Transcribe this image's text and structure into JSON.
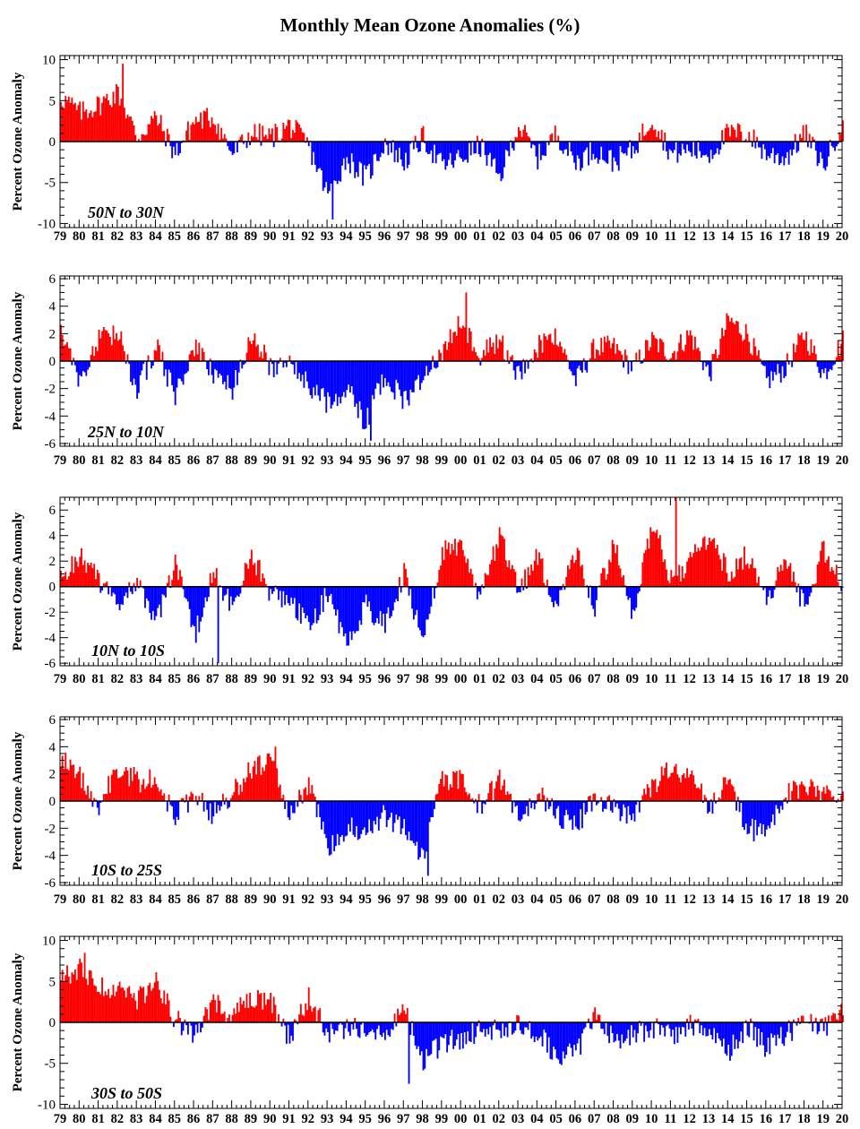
{
  "title": "Monthly Mean Ozone Anomalies (%)",
  "colors": {
    "positive": "#ff0000",
    "negative": "#0000ff",
    "axis": "#000000",
    "background": "#ffffff"
  },
  "chart_data": [
    {
      "type": "bar",
      "label": "50N to 30N",
      "ylabel": "Percent Ozone Anomaly",
      "ylim": [
        -10.5,
        10.5
      ],
      "yticks": [
        10,
        5,
        0,
        -5,
        -10
      ],
      "x_range_years": [
        1979,
        2020
      ],
      "xtick_labels": [
        "79",
        "80",
        "81",
        "82",
        "83",
        "84",
        "85",
        "86",
        "87",
        "88",
        "89",
        "90",
        "91",
        "92",
        "93",
        "94",
        "95",
        "96",
        "97",
        "98",
        "99",
        "00",
        "01",
        "02",
        "03",
        "04",
        "05",
        "06",
        "07",
        "08",
        "09",
        "10",
        "11",
        "12",
        "13",
        "14",
        "15",
        "16",
        "17",
        "18",
        "19",
        "20"
      ],
      "annual_values": [
        5.5,
        3.5,
        4.5,
        6.0,
        0.5,
        3.0,
        -1.5,
        2.5,
        3.0,
        -1.5,
        1.0,
        0.5,
        2.0,
        -0.5,
        -6.5,
        -2.0,
        -4.5,
        0.0,
        -2.5,
        0.5,
        -3.0,
        -2.0,
        -0.5,
        -4.5,
        2.0,
        -2.0,
        1.0,
        -2.5,
        -1.0,
        -2.5,
        -1.0,
        3.0,
        -1.5,
        -1.0,
        -1.5,
        1.0,
        1.0,
        -1.5,
        -2.0,
        1.0,
        -3.0,
        2.5
      ],
      "extremes": {
        "max": 9.5,
        "max_year": 1982,
        "min": -9.5,
        "min_year": 1993
      }
    },
    {
      "type": "bar",
      "label": "25N to 10N",
      "ylabel": "Percent Ozone Anomaly",
      "ylim": [
        -6.2,
        6.2
      ],
      "yticks": [
        6,
        4,
        2,
        0,
        -2,
        -4,
        -6
      ],
      "x_range_years": [
        1979,
        2020
      ],
      "xtick_labels": [
        "79",
        "80",
        "81",
        "82",
        "83",
        "84",
        "85",
        "86",
        "87",
        "88",
        "89",
        "90",
        "91",
        "92",
        "93",
        "94",
        "95",
        "96",
        "97",
        "98",
        "99",
        "00",
        "01",
        "02",
        "03",
        "04",
        "05",
        "06",
        "07",
        "08",
        "09",
        "10",
        "11",
        "12",
        "13",
        "14",
        "15",
        "16",
        "17",
        "18",
        "19",
        "20"
      ],
      "annual_values": [
        2.5,
        -1.5,
        1.5,
        2.0,
        -2.0,
        1.0,
        -2.5,
        1.0,
        -1.0,
        -2.0,
        2.0,
        -0.5,
        0.5,
        -2.0,
        -3.0,
        -2.0,
        -4.5,
        -1.0,
        -3.0,
        -1.0,
        0.5,
        3.0,
        0.5,
        1.5,
        -1.0,
        1.0,
        2.0,
        -1.5,
        1.0,
        1.0,
        -0.5,
        1.5,
        0.5,
        2.0,
        -1.0,
        3.0,
        2.0,
        -1.5,
        -0.5,
        2.0,
        -1.0,
        1.5
      ],
      "extremes": {
        "max": 5.0,
        "max_year": 2000,
        "min": -5.8,
        "min_year": 1995
      }
    },
    {
      "type": "bar",
      "label": "10N to 10S",
      "ylabel": "Percent Ozone Anomaly",
      "ylim": [
        -6.2,
        7.0
      ],
      "yticks": [
        6,
        4,
        2,
        0,
        -2,
        -4,
        -6
      ],
      "x_range_years": [
        1979,
        2020
      ],
      "xtick_labels": [
        "79",
        "80",
        "81",
        "82",
        "83",
        "84",
        "85",
        "86",
        "87",
        "88",
        "89",
        "90",
        "91",
        "92",
        "93",
        "94",
        "95",
        "96",
        "97",
        "98",
        "99",
        "00",
        "01",
        "02",
        "03",
        "04",
        "05",
        "06",
        "07",
        "08",
        "09",
        "10",
        "11",
        "12",
        "13",
        "14",
        "15",
        "16",
        "17",
        "18",
        "19",
        "20"
      ],
      "annual_values": [
        0.5,
        2.5,
        0.5,
        -1.5,
        0.5,
        -3.0,
        2.0,
        -4.0,
        1.0,
        -1.5,
        2.5,
        -0.5,
        -1.0,
        -3.0,
        -0.5,
        -4.5,
        -1.5,
        -3.0,
        1.0,
        -4.5,
        3.0,
        3.0,
        -1.0,
        4.0,
        -0.5,
        2.5,
        -1.5,
        3.0,
        -1.5,
        3.5,
        -2.5,
        5.0,
        0.5,
        2.0,
        4.0,
        1.0,
        2.5,
        -1.0,
        2.0,
        -1.5,
        3.0,
        0.0
      ],
      "extremes": {
        "max": 7.0,
        "max_year": 2011,
        "min": -6.0,
        "min_year": 1987
      }
    },
    {
      "type": "bar",
      "label": "10S to 25S",
      "ylabel": "Percent Ozone Anomaly",
      "ylim": [
        -6.2,
        6.2
      ],
      "yticks": [
        6,
        4,
        2,
        0,
        -2,
        -4,
        -6
      ],
      "x_range_years": [
        1979,
        2020
      ],
      "xtick_labels": [
        "79",
        "80",
        "81",
        "82",
        "83",
        "84",
        "85",
        "86",
        "87",
        "88",
        "89",
        "90",
        "91",
        "92",
        "93",
        "94",
        "95",
        "96",
        "97",
        "98",
        "99",
        "00",
        "01",
        "02",
        "03",
        "04",
        "05",
        "06",
        "07",
        "08",
        "09",
        "10",
        "11",
        "12",
        "13",
        "14",
        "15",
        "16",
        "17",
        "18",
        "19",
        "20"
      ],
      "annual_values": [
        3.0,
        2.0,
        -0.5,
        2.5,
        1.5,
        1.5,
        -1.0,
        0.5,
        -1.0,
        0.5,
        2.5,
        3.0,
        -1.0,
        1.5,
        -3.5,
        -2.0,
        -2.0,
        -1.0,
        -2.0,
        -4.0,
        1.5,
        1.5,
        -0.5,
        1.5,
        -1.0,
        0.5,
        -1.0,
        -2.0,
        0.5,
        -0.5,
        -1.0,
        1.0,
        2.5,
        2.0,
        -0.5,
        1.5,
        -2.0,
        -2.5,
        0.5,
        1.0,
        0.5,
        0.5
      ],
      "extremes": {
        "max": 4.0,
        "max_year": 1990,
        "min": -5.5,
        "min_year": 1998
      }
    },
    {
      "type": "bar",
      "label": "30S to 50S",
      "ylabel": "Percent Ozone Anomaly",
      "ylim": [
        -10.5,
        10.5
      ],
      "yticks": [
        10,
        5,
        0,
        -5,
        -10
      ],
      "x_range_years": [
        1979,
        2020
      ],
      "xtick_labels": [
        "79",
        "80",
        "81",
        "82",
        "83",
        "84",
        "85",
        "86",
        "87",
        "88",
        "89",
        "90",
        "91",
        "92",
        "93",
        "94",
        "95",
        "96",
        "97",
        "98",
        "99",
        "00",
        "01",
        "02",
        "03",
        "04",
        "05",
        "06",
        "07",
        "08",
        "09",
        "10",
        "11",
        "12",
        "13",
        "14",
        "15",
        "16",
        "17",
        "18",
        "19",
        "20"
      ],
      "annual_values": [
        5.0,
        6.5,
        4.0,
        4.5,
        3.0,
        5.0,
        0.5,
        -2.0,
        2.5,
        1.0,
        2.5,
        2.5,
        -2.0,
        3.0,
        -1.5,
        -1.0,
        -0.5,
        -1.0,
        1.5,
        -4.5,
        -2.5,
        -2.0,
        -1.0,
        -0.5,
        -0.5,
        -1.5,
        -4.0,
        -4.0,
        1.5,
        -2.5,
        -1.5,
        -0.5,
        -1.5,
        -0.5,
        -1.5,
        -3.5,
        -0.5,
        -3.0,
        -1.5,
        0.5,
        -1.0,
        1.0
      ],
      "extremes": {
        "max": 8.5,
        "max_year": 1980,
        "min": -7.5,
        "min_year": 1997
      }
    }
  ]
}
